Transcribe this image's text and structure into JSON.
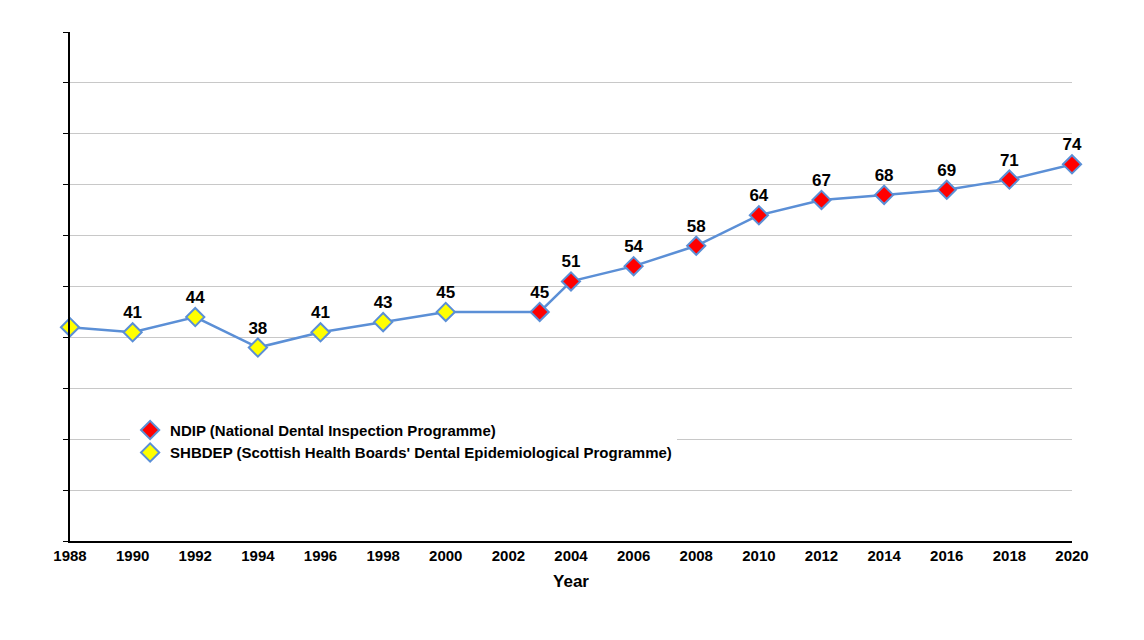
{
  "chart_data": {
    "type": "line",
    "x_label": "Year",
    "series": [
      {
        "name": "SHBDEP (Scottish Health Boards' Dental Epidemiological Programme)",
        "color": "#ffff00",
        "x": [
          1988,
          1990,
          1992,
          1994,
          1996,
          1998,
          2000
        ],
        "values": [
          42,
          41,
          44,
          38,
          41,
          43,
          45
        ],
        "value_labels": [
          null,
          "41",
          "44",
          "38",
          "41",
          "43",
          "45"
        ]
      },
      {
        "name": "NDIP (National Dental Inspection Programme)",
        "color": "#ff0000",
        "x": [
          2003,
          2004,
          2006,
          2008,
          2010,
          2012,
          2014,
          2016,
          2018,
          2020
        ],
        "values": [
          45,
          51,
          54,
          58,
          64,
          67,
          68,
          69,
          71,
          74
        ]
      }
    ],
    "xlim": [
      1988,
      2020
    ],
    "xticks": [
      1988,
      1990,
      1992,
      1994,
      1996,
      1998,
      2000,
      2002,
      2004,
      2006,
      2008,
      2010,
      2012,
      2014,
      2016,
      2018,
      2020
    ],
    "ylim": [
      0,
      100
    ],
    "yticks": [
      0,
      10,
      20,
      30,
      40,
      50,
      60,
      70,
      80,
      90,
      100
    ],
    "grid": true,
    "tick_labels": "x",
    "data_labels": true,
    "legend": "lower left",
    "marker": "diamond"
  }
}
